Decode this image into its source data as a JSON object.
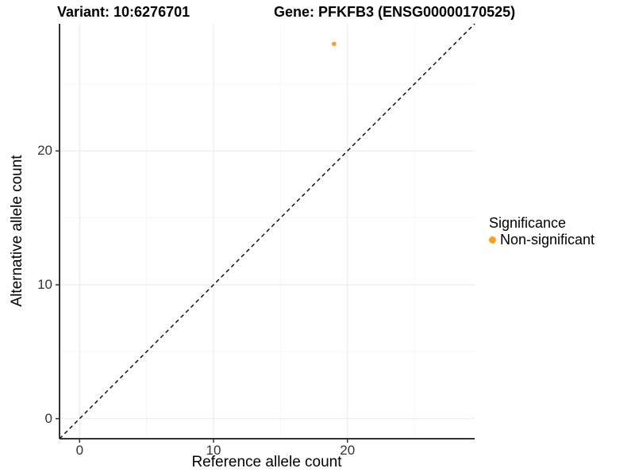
{
  "figure": {
    "title_left": "Variant: 10:6276701",
    "title_right": "Gene: PFKFB3 (ENSG00000170525)"
  },
  "chart_data": {
    "type": "scatter",
    "titles": {
      "left": "Variant: 10:6276701",
      "right": "Gene: PFKFB3 (ENSG00000170525)"
    },
    "xlabel": "Reference allele count",
    "ylabel": "Alternative allele count",
    "xlim": [
      -1.5,
      29.5
    ],
    "ylim": [
      -1.5,
      29.5
    ],
    "x_major_ticks": [
      0,
      10,
      20
    ],
    "y_major_ticks": [
      0,
      10,
      20
    ],
    "x_minor_ticks": [
      5,
      15,
      25
    ],
    "y_minor_ticks": [
      5,
      15,
      25
    ],
    "grid": true,
    "identity_line": {
      "style": "dashed",
      "from": [
        -1.5,
        -1.5
      ],
      "to": [
        29.5,
        29.5
      ],
      "color": "#000000"
    },
    "series": [
      {
        "name": "Non-significant",
        "color": "#FA9E26",
        "points": [
          {
            "x": 19,
            "y": 28
          }
        ]
      }
    ],
    "legend": {
      "title": "Significance",
      "position": "right",
      "items": [
        {
          "label": "Non-significant",
          "color": "#FA9E26"
        }
      ]
    },
    "colors": {
      "grid_major": "#EBEBEB",
      "grid_minor": "#F5F5F5",
      "axis": "#333333",
      "tick_text": "#333333",
      "point": "#FA9E26"
    }
  }
}
